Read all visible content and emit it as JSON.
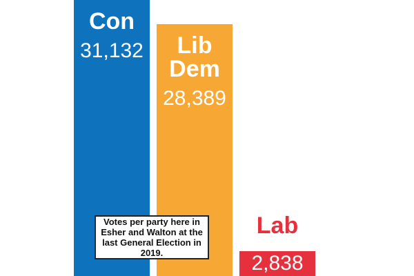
{
  "chart_data": {
    "type": "bar",
    "categories": [
      "Con",
      "Lib Dem",
      "Lab"
    ],
    "values": [
      31132,
      28389,
      2838
    ],
    "value_labels": [
      "31,132",
      "28,389",
      "2,838"
    ],
    "colors": [
      "#0f72bd",
      "#f6a734",
      "#e4313d"
    ],
    "annotation": "Votes per party here in Esher and Walton at the last General Election in 2019."
  }
}
